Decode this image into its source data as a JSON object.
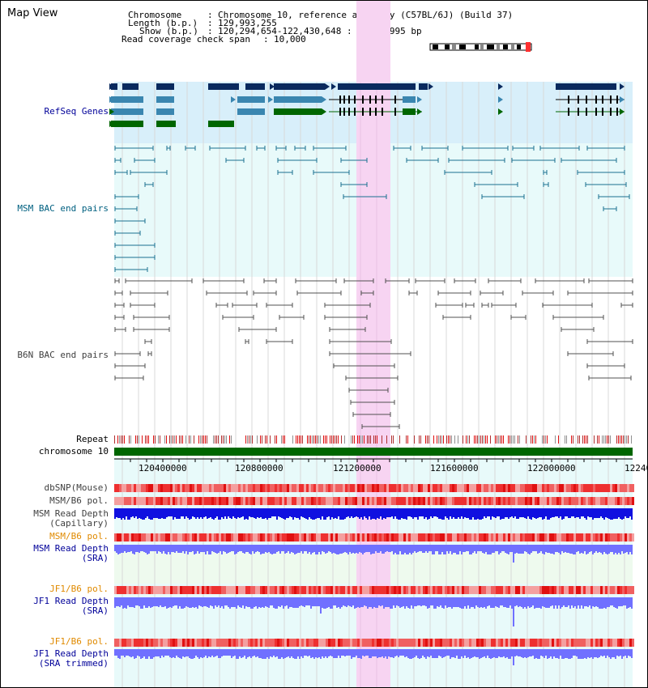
{
  "title": "Map View",
  "info": {
    "lines": [
      {
        "key": "Chromosome",
        "value": "Chromosome 10, reference assembly (C57BL/6J) (Build 37)"
      },
      {
        "key": "Length (b.p.)",
        "value": "129,993,255"
      },
      {
        "key": "Show (b.p.)",
        "value": "120,294,654-122,430,648 : 2,135,995 bp"
      },
      {
        "key": "Read coverage check span",
        "value": "10,000"
      }
    ]
  },
  "tracks": {
    "refseq": "RefSeq Genes",
    "msm_bac": "MSM BAC end pairs",
    "b6n_bac": "B6N BAC end pairs",
    "repeat": "Repeat",
    "chromosome": "chromosome 10",
    "dbsnp": "dbSNP(Mouse)",
    "msm_b6_pol": "MSM/B6 pol.",
    "msm_depth_cap_1": "MSM Read Depth",
    "msm_depth_cap_2": "(Capillary)",
    "msm_b6_pol_sra": "MSM/B6 pol.",
    "msm_depth_sra_1": "MSM Read Depth",
    "msm_depth_sra_2": "(SRA)",
    "jf1_b6_pol": "JF1/B6 pol.",
    "jf1_depth_sra_1": "JF1 Read Depth",
    "jf1_depth_sra_2": "(SRA)",
    "jf1_b6_pol_trim": "JF1/B6 pol.",
    "jf1_depth_trim_1": "JF1 Read Depth",
    "jf1_depth_trim_2": "(SRA trimmed)"
  },
  "axis": {
    "ticks": [
      "120400000",
      "120800000",
      "121200000",
      "121600000",
      "122000000",
      "12240"
    ]
  },
  "colors": {
    "navy_label": "#000099",
    "teal_label": "#006080",
    "grey_label": "#404040",
    "orange_label": "#e08a00",
    "highlight": "#f7d4f2",
    "gene_dark": "#0a2a5e",
    "gene_mid": "#3a86b0",
    "gene_green": "#006600",
    "depth_blue": "#1010e0",
    "depth_light": "#7070ff"
  }
}
